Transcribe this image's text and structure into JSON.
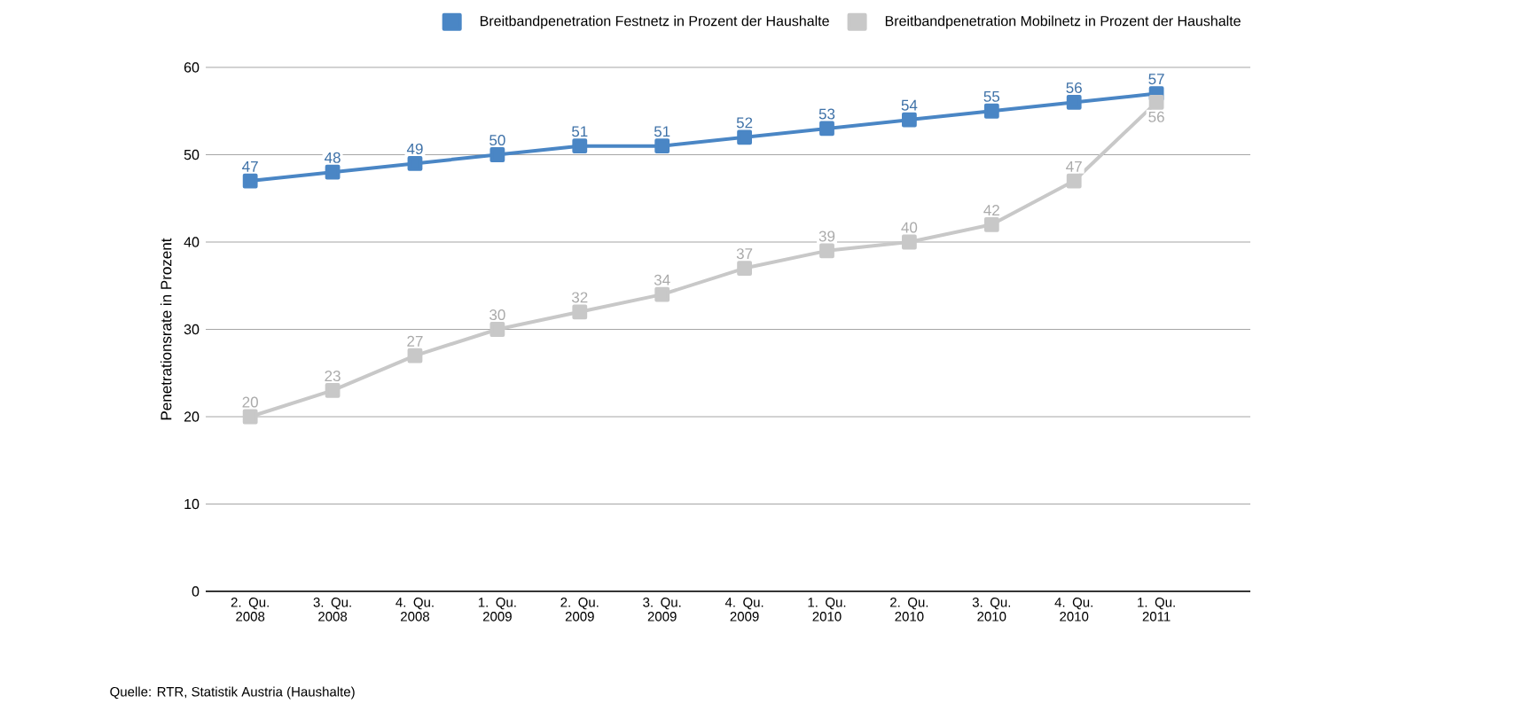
{
  "chart_data": {
    "type": "line",
    "ylabel": "Penetrationsrate in Prozent",
    "categories": [
      "2. Qu. 2008",
      "3. Qu. 2008",
      "4. Qu. 2008",
      "1. Qu. 2009",
      "2. Qu. 2009",
      "3. Qu. 2009",
      "4. Qu. 2009",
      "1. Qu. 2010",
      "2. Qu. 2010",
      "3. Qu. 2010",
      "4. Qu. 2010",
      "1. Qu. 2011"
    ],
    "series": [
      {
        "name": "Breitbandpenetration Festnetz in Prozent der Haushalte",
        "color": "#4a86c5",
        "values": [
          47,
          48,
          49,
          50,
          51,
          51,
          52,
          53,
          54,
          55,
          56,
          57
        ]
      },
      {
        "name": "Breitbandpenetration Mobilnetz in Prozent der Haushalte",
        "color": "#c8c8c8",
        "values": [
          20,
          23,
          27,
          30,
          32,
          34,
          37,
          39,
          40,
          42,
          47,
          56
        ]
      }
    ],
    "ylim": [
      0,
      60
    ],
    "yticks": [
      0,
      10,
      20,
      30,
      40,
      50,
      60
    ],
    "grid": "y",
    "legend": "top right",
    "marker": "square",
    "line_style": "solid",
    "data_labels": true,
    "annotations": [
      "Quelle: RTR, Statistik Austria (Haushalte)"
    ]
  }
}
